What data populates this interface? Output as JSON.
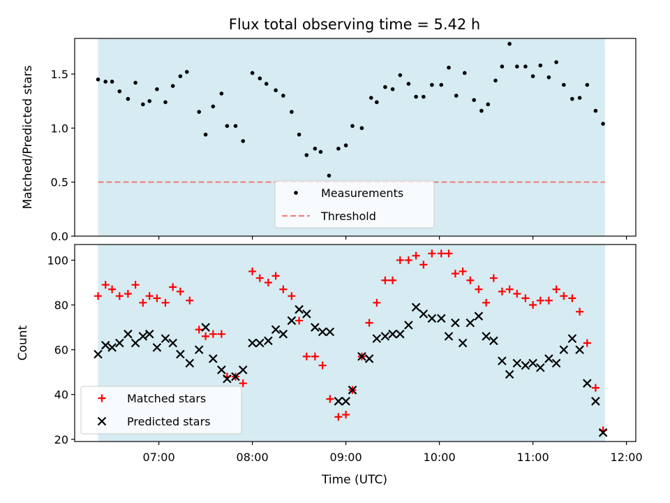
{
  "figure": {
    "title": "Flux total observing time = 5.42 h",
    "xlabel": "Time (UTC)"
  },
  "colors": {
    "shade": "#add8e6",
    "measurement": "#000000",
    "threshold": "#f08080",
    "matched": "#ff0000",
    "predicted": "#000000"
  },
  "chart_data": [
    {
      "type": "scatter",
      "ylabel": "Matched/Predicted stars",
      "x_axis": "time (hours UTC)",
      "xlim": [
        6.1,
        12.1
      ],
      "ylim": [
        0,
        1.83
      ],
      "xticks": [
        7,
        8,
        9,
        10,
        11,
        12
      ],
      "xtick_labels": [],
      "yticks": [
        0.0,
        0.5,
        1.0,
        1.5
      ],
      "ytick_labels": [
        "0.0",
        "0.5",
        "1.0",
        "1.5"
      ],
      "shaded_span": [
        6.35,
        11.77
      ],
      "threshold": 0.5,
      "legend": {
        "placement": "lower center",
        "entries": [
          "Measurements",
          "Threshold"
        ]
      },
      "series": [
        {
          "name": "Measurements",
          "marker": "dot",
          "x": [
            6.35,
            6.43,
            6.5,
            6.58,
            6.67,
            6.75,
            6.83,
            6.9,
            6.98,
            7.07,
            7.15,
            7.23,
            7.3,
            7.43,
            7.5,
            7.58,
            7.67,
            7.73,
            7.82,
            7.9,
            8.0,
            8.08,
            8.15,
            8.25,
            8.33,
            8.42,
            8.5,
            8.58,
            8.67,
            8.73,
            8.82,
            8.92,
            9.0,
            9.07,
            9.17,
            9.27,
            9.33,
            9.42,
            9.5,
            9.58,
            9.67,
            9.75,
            9.83,
            9.92,
            10.02,
            10.1,
            10.18,
            10.27,
            10.37,
            10.45,
            10.52,
            10.6,
            10.67,
            10.75,
            10.83,
            10.92,
            11.0,
            11.08,
            11.17,
            11.25,
            11.33,
            11.42,
            11.5,
            11.58,
            11.67,
            11.75
          ],
          "y": [
            1.45,
            1.43,
            1.43,
            1.34,
            1.27,
            1.42,
            1.22,
            1.25,
            1.36,
            1.24,
            1.39,
            1.48,
            1.52,
            1.15,
            0.94,
            1.2,
            1.32,
            1.02,
            1.02,
            0.88,
            1.51,
            1.46,
            1.41,
            1.35,
            1.3,
            1.15,
            0.94,
            0.75,
            0.81,
            0.78,
            0.56,
            0.81,
            0.84,
            1.02,
            1.0,
            1.28,
            1.24,
            1.38,
            1.36,
            1.49,
            1.41,
            1.29,
            1.29,
            1.4,
            1.4,
            1.56,
            1.3,
            1.51,
            1.26,
            1.16,
            1.22,
            1.44,
            1.57,
            1.78,
            1.57,
            1.57,
            1.48,
            1.58,
            1.47,
            1.61,
            1.4,
            1.27,
            1.28,
            1.4,
            1.16,
            1.04
          ]
        },
        {
          "name": "Threshold",
          "style": "dashed",
          "x": [
            6.35,
            11.77
          ],
          "y": [
            0.5,
            0.5
          ]
        }
      ]
    },
    {
      "type": "scatter",
      "ylabel": "Count",
      "x_axis": "time (hours UTC)",
      "xlim": [
        6.1,
        12.1
      ],
      "ylim": [
        19,
        107
      ],
      "xticks": [
        7,
        8,
        9,
        10,
        11,
        12
      ],
      "xtick_labels": [
        "07:00",
        "08:00",
        "09:00",
        "10:00",
        "11:00",
        "12:00"
      ],
      "yticks": [
        20,
        40,
        60,
        80,
        100
      ],
      "ytick_labels": [
        "20",
        "40",
        "60",
        "80",
        "100"
      ],
      "shaded_span": [
        6.35,
        11.77
      ],
      "legend": {
        "placement": "lower left",
        "entries": [
          "Matched stars",
          "Predicted stars"
        ]
      },
      "series": [
        {
          "name": "Matched stars",
          "marker": "plus",
          "x": [
            6.35,
            6.43,
            6.5,
            6.58,
            6.67,
            6.75,
            6.83,
            6.9,
            6.98,
            7.07,
            7.15,
            7.23,
            7.33,
            7.43,
            7.5,
            7.58,
            7.67,
            7.73,
            7.82,
            7.9,
            8.0,
            8.08,
            8.17,
            8.25,
            8.33,
            8.42,
            8.5,
            8.58,
            8.67,
            8.75,
            8.83,
            8.92,
            9.0,
            9.07,
            9.17,
            9.25,
            9.33,
            9.42,
            9.5,
            9.58,
            9.67,
            9.75,
            9.83,
            9.92,
            10.02,
            10.1,
            10.17,
            10.25,
            10.33,
            10.42,
            10.5,
            10.58,
            10.67,
            10.75,
            10.83,
            10.92,
            11.0,
            11.08,
            11.17,
            11.25,
            11.33,
            11.42,
            11.5,
            11.58,
            11.67,
            11.75
          ],
          "y": [
            84,
            89,
            87,
            84,
            85,
            89,
            81,
            84,
            83,
            81,
            88,
            86,
            82,
            69,
            66,
            67,
            67,
            48,
            48,
            45,
            95,
            92,
            90,
            93,
            87,
            84,
            73,
            57,
            57,
            53,
            38,
            30,
            31,
            42,
            57,
            72,
            81,
            91,
            91,
            100,
            100,
            102,
            98,
            103,
            103,
            103,
            94,
            95,
            91,
            87,
            81,
            92,
            86,
            87,
            85,
            83,
            80,
            82,
            82,
            87,
            84,
            83,
            77,
            63,
            43,
            24
          ]
        },
        {
          "name": "Predicted stars",
          "marker": "x",
          "x": [
            6.35,
            6.43,
            6.5,
            6.58,
            6.67,
            6.75,
            6.83,
            6.9,
            6.98,
            7.07,
            7.15,
            7.23,
            7.33,
            7.43,
            7.5,
            7.58,
            7.67,
            7.73,
            7.82,
            7.9,
            8.0,
            8.08,
            8.17,
            8.25,
            8.33,
            8.42,
            8.5,
            8.58,
            8.67,
            8.75,
            8.83,
            8.92,
            9.0,
            9.07,
            9.17,
            9.25,
            9.33,
            9.42,
            9.5,
            9.58,
            9.67,
            9.75,
            9.83,
            9.92,
            10.02,
            10.1,
            10.17,
            10.25,
            10.33,
            10.42,
            10.5,
            10.58,
            10.67,
            10.75,
            10.83,
            10.92,
            11.0,
            11.08,
            11.17,
            11.25,
            11.33,
            11.42,
            11.5,
            11.58,
            11.67,
            11.75
          ],
          "y": [
            58,
            62,
            61,
            63,
            67,
            63,
            66,
            67,
            61,
            65,
            63,
            58,
            54,
            60,
            70,
            56,
            51,
            47,
            48,
            51,
            63,
            63,
            64,
            69,
            67,
            73,
            78,
            76,
            70,
            68,
            68,
            37,
            37,
            42,
            57,
            56,
            65,
            66,
            67,
            67,
            71,
            79,
            76,
            74,
            74,
            66,
            72,
            63,
            72,
            75,
            66,
            64,
            55,
            49,
            54,
            53,
            54,
            52,
            56,
            54,
            60,
            65,
            60,
            45,
            37,
            23
          ]
        }
      ]
    }
  ]
}
